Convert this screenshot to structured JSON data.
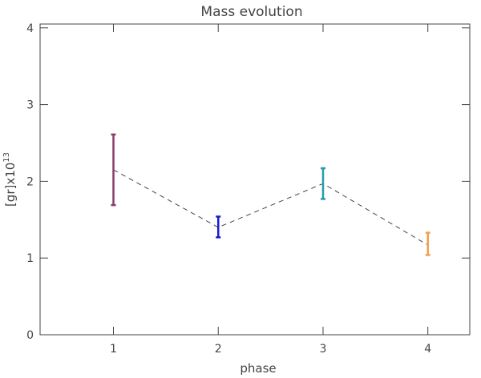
{
  "chart_data": {
    "type": "errorbar",
    "title": "Mass evolution",
    "xlabel": "phase",
    "ylabel_base": "[gr]x10",
    "ylabel_exponent": "13",
    "xlim": [
      0.3,
      4.4
    ],
    "ylim": [
      0,
      4.05
    ],
    "x_ticks": [
      1,
      2,
      3,
      4
    ],
    "y_ticks": [
      0,
      1,
      2,
      3,
      4
    ],
    "points": [
      {
        "x": 1,
        "y": 2.15,
        "y_low": 1.69,
        "y_high": 2.61,
        "color": "#8b3a6b"
      },
      {
        "x": 2,
        "y": 1.4,
        "y_low": 1.27,
        "y_high": 1.54,
        "color": "#1a1ad0"
      },
      {
        "x": 3,
        "y": 1.97,
        "y_low": 1.77,
        "y_high": 2.17,
        "color": "#2a9aa8"
      },
      {
        "x": 4,
        "y": 1.17,
        "y_low": 1.04,
        "y_high": 1.33,
        "color": "#f0a050"
      }
    ],
    "connector_style": "dashed",
    "connector_color": "#444444",
    "grid": false
  }
}
